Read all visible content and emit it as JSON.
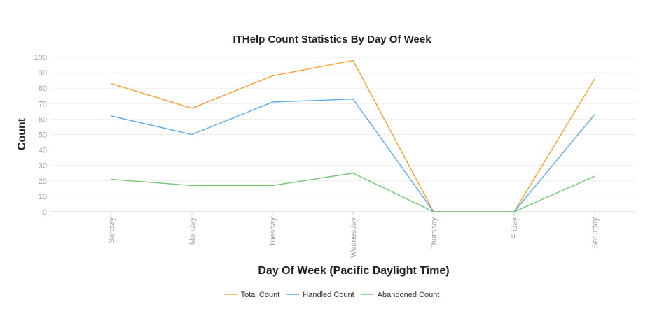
{
  "chart_data": {
    "type": "line",
    "title": "ITHelp Count Statistics By Day Of Week",
    "xlabel": "Day Of Week (Pacific Daylight Time)",
    "ylabel": "Count",
    "categories": [
      "Sunday",
      "Monday",
      "Tuesday",
      "Wednesday",
      "Thursday",
      "Friday",
      "Saturday"
    ],
    "ylim": [
      0,
      100
    ],
    "yticks": [
      "0",
      "10",
      "20",
      "30",
      "40",
      "50",
      "60",
      "70",
      "80",
      "90",
      "100"
    ],
    "grid": true,
    "legend_position": "bottom",
    "series": [
      {
        "name": "Total Count",
        "color": "#f7a035",
        "values": [
          83,
          67,
          88,
          98,
          0,
          0,
          86
        ]
      },
      {
        "name": "Handled Count",
        "color": "#5ea9e6",
        "values": [
          62,
          50,
          71,
          73,
          0,
          0,
          63
        ]
      },
      {
        "name": "Abandoned Count",
        "color": "#74c476",
        "values": [
          21,
          17,
          17,
          25,
          0,
          0,
          23
        ]
      }
    ]
  }
}
